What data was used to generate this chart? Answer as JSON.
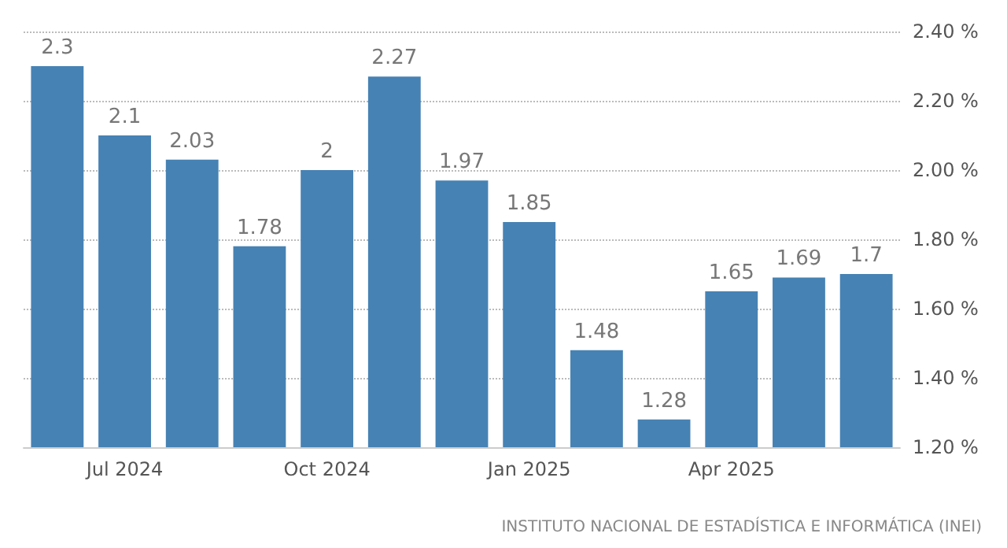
{
  "chart_data": {
    "type": "bar",
    "categories": [
      null,
      "Jul 2024",
      null,
      null,
      "Oct 2024",
      null,
      null,
      "Jan 2025",
      null,
      null,
      "Apr 2025",
      null,
      null
    ],
    "values": [
      2.3,
      2.1,
      2.03,
      1.78,
      2,
      2.27,
      1.97,
      1.85,
      1.48,
      1.28,
      1.65,
      1.69,
      1.7
    ],
    "color": "#4682b4",
    "ylim": [
      1.2,
      2.4
    ],
    "yticks": [
      {
        "value": 1.2,
        "label": "1.20 %"
      },
      {
        "value": 1.4,
        "label": "1.40 %"
      },
      {
        "value": 1.6,
        "label": "1.60 %"
      },
      {
        "value": 1.8,
        "label": "1.80 %"
      },
      {
        "value": 2.0,
        "label": "2.00 %"
      },
      {
        "value": 2.2,
        "label": "2.20 %"
      },
      {
        "value": 2.4,
        "label": "2.40 %"
      }
    ],
    "grid": "y",
    "data_labels": true,
    "annotations": [
      "INSTITUTO NACIONAL DE ESTADÍSTICA E INFORMÁTICA (INEI)"
    ]
  }
}
